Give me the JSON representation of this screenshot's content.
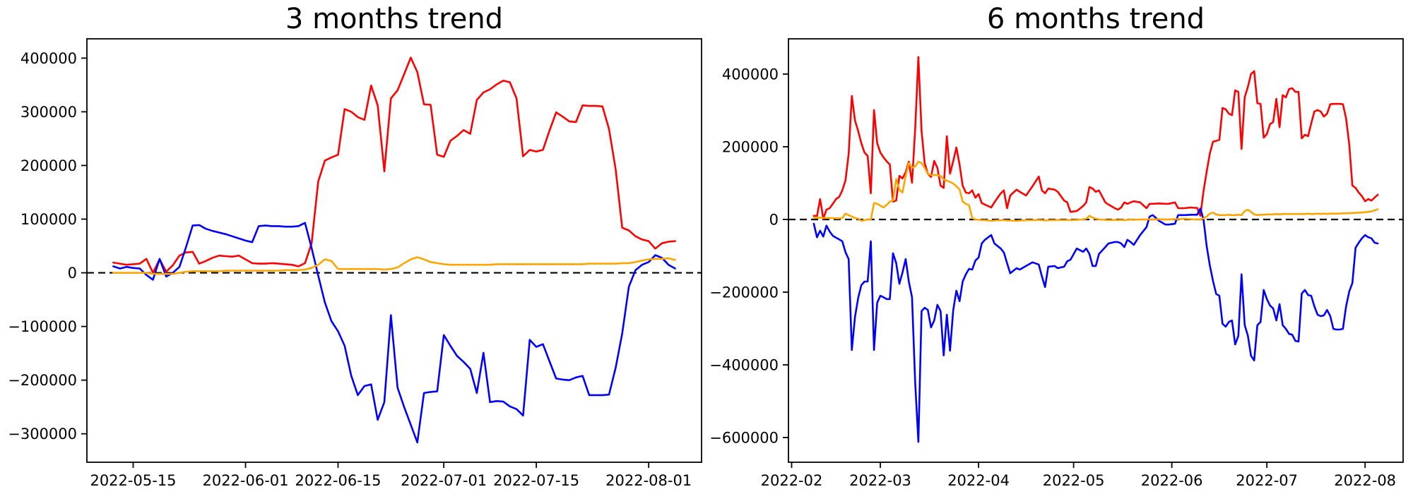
{
  "page": {
    "background": "#ffffff"
  },
  "chart_data": [
    {
      "type": "line",
      "title": "3 months trend",
      "xlabel": "",
      "ylabel": "",
      "grid": false,
      "legend": "none",
      "zero_line": {
        "style": "dashed",
        "color": "#000000",
        "value": 0
      },
      "ylim": [
        -353000,
        436000
      ],
      "xlim_dates": [
        "2022-05-08",
        "2022-08-09"
      ],
      "x_tick_labels": [
        "2022-05-15",
        "2022-06-01",
        "2022-06-15",
        "2022-07-01",
        "2022-07-15",
        "2022-08-01"
      ],
      "x_tick_offsets": [
        3,
        20,
        34,
        50,
        64,
        81
      ],
      "y_tick_labels": [
        "400000",
        "300000",
        "200000",
        "100000",
        "0",
        "−100000",
        "−200000",
        "−300000"
      ],
      "y_tick_values": [
        400000,
        300000,
        200000,
        100000,
        0,
        -100000,
        -200000,
        -300000
      ],
      "start_date": "2022-05-12",
      "sampling": "daily",
      "day_offsets": null,
      "series": [
        {
          "name": "red",
          "color": "#ff0000",
          "values": [
            19000,
            17000,
            15000,
            16000,
            17000,
            26000,
            0,
            25000,
            2000,
            14000,
            32000,
            38000,
            39000,
            17000,
            22000,
            28000,
            32000,
            31000,
            30000,
            32000,
            25000,
            18000,
            17000,
            17000,
            18000,
            17000,
            16000,
            15000,
            12000,
            18000,
            55000,
            170000,
            209000,
            215000,
            220000,
            305000,
            300000,
            290000,
            285000,
            349000,
            312000,
            189000,
            325000,
            340000,
            370000,
            401000,
            374000,
            314000,
            313000,
            220000,
            216000,
            246000,
            255000,
            266000,
            259000,
            322000,
            336000,
            342000,
            351000,
            358000,
            355000,
            325000,
            217000,
            229000,
            226000,
            229000,
            265000,
            299000,
            291000,
            282000,
            281000,
            312000,
            311000,
            311000,
            310000,
            268000,
            193000,
            84000,
            79000,
            68000,
            62000,
            59000,
            45000,
            55000,
            58000,
            59000
          ]
        },
        {
          "name": "blue",
          "color": "#0000ff",
          "values": [
            12000,
            8000,
            11000,
            9000,
            8000,
            -4000,
            -13000,
            26000,
            -7000,
            0,
            11000,
            48000,
            88000,
            89000,
            82000,
            78000,
            75000,
            72000,
            68000,
            64000,
            60000,
            57000,
            87000,
            88000,
            87000,
            87000,
            86000,
            86000,
            87000,
            93000,
            46000,
            -5000,
            -55000,
            -90000,
            -109000,
            -136000,
            -192000,
            -228000,
            -211000,
            -208000,
            -274000,
            -241000,
            -79000,
            -214000,
            -250000,
            -283000,
            -316000,
            -224000,
            -222000,
            -221000,
            -116000,
            -136000,
            -155000,
            -166000,
            -179000,
            -224000,
            -149000,
            -241000,
            -239000,
            -240000,
            -249000,
            -254000,
            -266000,
            -125000,
            -138000,
            -133000,
            -165000,
            -197000,
            -199000,
            -200000,
            -195000,
            -192000,
            -228000,
            -228000,
            -228000,
            -227000,
            -177000,
            -113000,
            -26000,
            5000,
            15000,
            20000,
            33000,
            28000,
            15000,
            8000
          ]
        },
        {
          "name": "orange",
          "color": "#ffa500",
          "values": [
            0,
            0,
            0,
            0,
            0,
            0,
            -2000,
            -2000,
            -2000,
            -2000,
            0,
            2000,
            3000,
            3000,
            3000,
            3000,
            3000,
            4000,
            4000,
            4000,
            4000,
            4000,
            4000,
            4000,
            4000,
            4000,
            5000,
            5000,
            5000,
            6000,
            9000,
            15000,
            25000,
            22000,
            7000,
            7000,
            7000,
            7000,
            7000,
            7000,
            7000,
            6000,
            7000,
            10000,
            18000,
            25000,
            29000,
            25000,
            20000,
            18000,
            16000,
            15000,
            15000,
            15000,
            15000,
            15000,
            15000,
            15000,
            16000,
            16000,
            16000,
            16000,
            16000,
            16000,
            16000,
            16000,
            16000,
            16000,
            16000,
            16000,
            16000,
            16000,
            17000,
            17000,
            17000,
            17000,
            17000,
            18000,
            18000,
            20000,
            23000,
            25000,
            26000,
            26000,
            27000,
            24000
          ]
        }
      ]
    },
    {
      "type": "line",
      "title": "6 months trend",
      "xlabel": "",
      "ylabel": "",
      "grid": false,
      "legend": "none",
      "zero_line": {
        "style": "dashed",
        "color": "#000000",
        "value": 0
      },
      "ylim": [
        -668000,
        497000
      ],
      "xlim_dates": [
        "2022-01-31",
        "2022-08-13"
      ],
      "x_tick_labels": [
        "2022-02",
        "2022-03",
        "2022-04",
        "2022-05",
        "2022-06",
        "2022-07",
        "2022-08"
      ],
      "x_tick_offsets": [
        -7,
        21,
        52,
        82,
        113,
        143,
        174
      ],
      "y_tick_labels": [
        "400000",
        "200000",
        "0",
        "−200000",
        "−400000",
        "−600000"
      ],
      "y_tick_values": [
        400000,
        200000,
        0,
        -200000,
        -400000,
        -600000
      ],
      "start_date": "2022-02-08",
      "sampling": "irregular",
      "day_offsets": [
        0,
        1,
        2,
        3,
        4,
        5,
        6,
        7,
        8,
        9,
        10,
        11,
        12,
        13,
        14,
        15,
        16,
        17,
        18,
        19,
        20,
        21,
        22,
        23,
        24,
        25,
        26,
        27,
        28,
        29,
        30,
        31,
        32,
        33,
        34,
        35,
        36,
        37,
        38,
        39,
        40,
        41,
        42,
        43,
        44,
        45,
        46,
        47,
        48,
        49,
        50,
        51,
        52,
        53,
        54,
        56,
        57,
        59,
        60,
        61,
        62,
        64,
        65,
        67,
        69,
        71,
        72,
        73,
        74,
        76,
        77,
        79,
        80,
        81,
        83,
        85,
        86,
        87,
        88,
        89,
        90,
        92,
        93,
        95,
        96,
        97,
        98,
        99,
        100,
        101,
        103,
        105,
        106,
        107,
        109,
        111,
        112,
        114,
        115,
        117,
        119,
        120,
        121,
        122,
        123,
        124,
        125,
        126,
        127,
        128,
        129,
        130,
        131,
        132,
        133,
        134,
        135,
        136,
        137,
        138,
        139,
        140,
        141,
        142,
        143,
        144,
        145,
        146,
        147,
        148,
        149,
        150,
        151,
        152,
        153,
        154,
        155,
        156,
        157,
        158,
        159,
        160,
        161,
        162,
        163,
        164,
        165,
        166,
        167,
        168,
        169,
        170,
        171,
        172,
        173,
        174,
        175,
        176,
        177,
        178
      ],
      "series": [
        {
          "name": "red",
          "color": "#ff0000",
          "values": [
            10000,
            9000,
            56000,
            2000,
            27000,
            31000,
            43000,
            56000,
            62000,
            80000,
            107000,
            180000,
            340000,
            272000,
            243000,
            210000,
            184000,
            175000,
            72000,
            301000,
            210000,
            184000,
            171000,
            160000,
            151000,
            49000,
            52000,
            120000,
            113000,
            130000,
            159000,
            101000,
            250000,
            447000,
            243000,
            155000,
            126000,
            117000,
            161000,
            142000,
            93000,
            87000,
            229000,
            126000,
            160000,
            198000,
            151000,
            93000,
            74000,
            72000,
            80000,
            60000,
            70000,
            45000,
            41000,
            33000,
            47000,
            72000,
            80000,
            31000,
            66000,
            82000,
            76000,
            66000,
            91000,
            118000,
            80000,
            72000,
            85000,
            82000,
            76000,
            52000,
            47000,
            21000,
            23000,
            37000,
            47000,
            89000,
            85000,
            76000,
            80000,
            47000,
            41000,
            31000,
            27000,
            33000,
            47000,
            43000,
            47000,
            50000,
            47000,
            31000,
            43000,
            43000,
            44000,
            43000,
            43000,
            47000,
            31000,
            31000,
            33000,
            32000,
            32000,
            10000,
            78000,
            132000,
            181000,
            214000,
            216000,
            219000,
            307000,
            303000,
            291000,
            287000,
            355000,
            351000,
            194000,
            336000,
            365000,
            400000,
            408000,
            320000,
            318000,
            225000,
            235000,
            262000,
            268000,
            332000,
            254000,
            342000,
            336000,
            359000,
            361000,
            351000,
            351000,
            223000,
            233000,
            229000,
            264000,
            297000,
            301000,
            297000,
            283000,
            291000,
            317000,
            318000,
            318000,
            318000,
            317000,
            278000,
            206000,
            93000,
            87000,
            74000,
            64000,
            50000,
            56000,
            52000,
            60000,
            68000
          ]
        },
        {
          "name": "blue",
          "color": "#0000ff",
          "values": [
            -12000,
            -49000,
            -31000,
            -47000,
            -17000,
            -33000,
            -45000,
            -50000,
            -55000,
            -60000,
            -90000,
            -109000,
            -359000,
            -268000,
            -216000,
            -181000,
            -171000,
            -171000,
            -60000,
            -359000,
            -229000,
            -210000,
            -214000,
            -219000,
            -219000,
            -93000,
            -120000,
            -177000,
            -146000,
            -109000,
            -171000,
            -214000,
            -450000,
            -612000,
            -252000,
            -243000,
            -249000,
            -297000,
            -278000,
            -235000,
            -252000,
            -374000,
            -262000,
            -361000,
            -250000,
            -196000,
            -225000,
            -171000,
            -151000,
            -136000,
            -138000,
            -113000,
            -105000,
            -66000,
            -56000,
            -43000,
            -66000,
            -80000,
            -91000,
            -120000,
            -148000,
            -134000,
            -138000,
            -128000,
            -118000,
            -124000,
            -157000,
            -186000,
            -130000,
            -128000,
            -134000,
            -130000,
            -115000,
            -111000,
            -80000,
            -89000,
            -80000,
            -95000,
            -128000,
            -128000,
            -95000,
            -76000,
            -66000,
            -62000,
            -62000,
            -66000,
            -76000,
            -56000,
            -62000,
            -70000,
            -43000,
            -21000,
            8000,
            12000,
            -4000,
            -14000,
            -14000,
            -12000,
            12000,
            12000,
            13000,
            13000,
            13000,
            30000,
            0,
            -74000,
            -126000,
            -169000,
            -205000,
            -210000,
            -287000,
            -295000,
            -282000,
            -278000,
            -344000,
            -320000,
            -151000,
            -291000,
            -320000,
            -375000,
            -388000,
            -291000,
            -282000,
            -194000,
            -219000,
            -237000,
            -245000,
            -278000,
            -233000,
            -291000,
            -301000,
            -315000,
            -317000,
            -334000,
            -336000,
            -204000,
            -194000,
            -208000,
            -210000,
            -239000,
            -262000,
            -266000,
            -264000,
            -249000,
            -266000,
            -301000,
            -303000,
            -303000,
            -301000,
            -239000,
            -198000,
            -175000,
            -78000,
            -64000,
            -52000,
            -43000,
            -49000,
            -52000,
            -64000,
            -66000
          ]
        },
        {
          "name": "orange",
          "color": "#ffa500",
          "values": [
            6000,
            5000,
            5000,
            4000,
            4000,
            4000,
            4000,
            3000,
            3000,
            4000,
            16000,
            12000,
            8000,
            4000,
            2000,
            -4000,
            -2000,
            0,
            0,
            45000,
            43000,
            38000,
            33000,
            40000,
            49000,
            52000,
            111000,
            82000,
            74000,
            120000,
            155000,
            142000,
            146000,
            159000,
            155000,
            142000,
            126000,
            122000,
            122000,
            122000,
            120000,
            110000,
            107000,
            103000,
            99000,
            91000,
            83000,
            49000,
            43000,
            39000,
            4000,
            0,
            -1000,
            -2000,
            -2000,
            -4000,
            -3000,
            -2000,
            -2000,
            -3000,
            -3000,
            -4000,
            -3000,
            -2000,
            -2000,
            -1000,
            -2000,
            -3000,
            -2000,
            -2000,
            -1000,
            -2000,
            -1000,
            -2000,
            -1000,
            0,
            2000,
            10000,
            5000,
            2000,
            0,
            -1000,
            -2000,
            -1000,
            -2000,
            -1000,
            -2000,
            -1000,
            0,
            -1000,
            0,
            0,
            1000,
            0,
            1000,
            0,
            0,
            1000,
            1000,
            2000,
            1000,
            0,
            0,
            0,
            3000,
            8000,
            16000,
            19000,
            14000,
            12000,
            12000,
            12000,
            13000,
            12000,
            12000,
            13000,
            12000,
            23000,
            27000,
            21000,
            14000,
            12000,
            13000,
            13000,
            14000,
            14000,
            14000,
            15000,
            14000,
            15000,
            15000,
            15000,
            15000,
            15000,
            15000,
            15000,
            15000,
            16000,
            15000,
            15000,
            16000,
            15000,
            16000,
            15000,
            16000,
            16000,
            16000,
            16000,
            17000,
            17000,
            17000,
            18000,
            18000,
            19000,
            19000,
            20000,
            21000,
            22000,
            25000,
            28000
          ]
        }
      ]
    }
  ]
}
